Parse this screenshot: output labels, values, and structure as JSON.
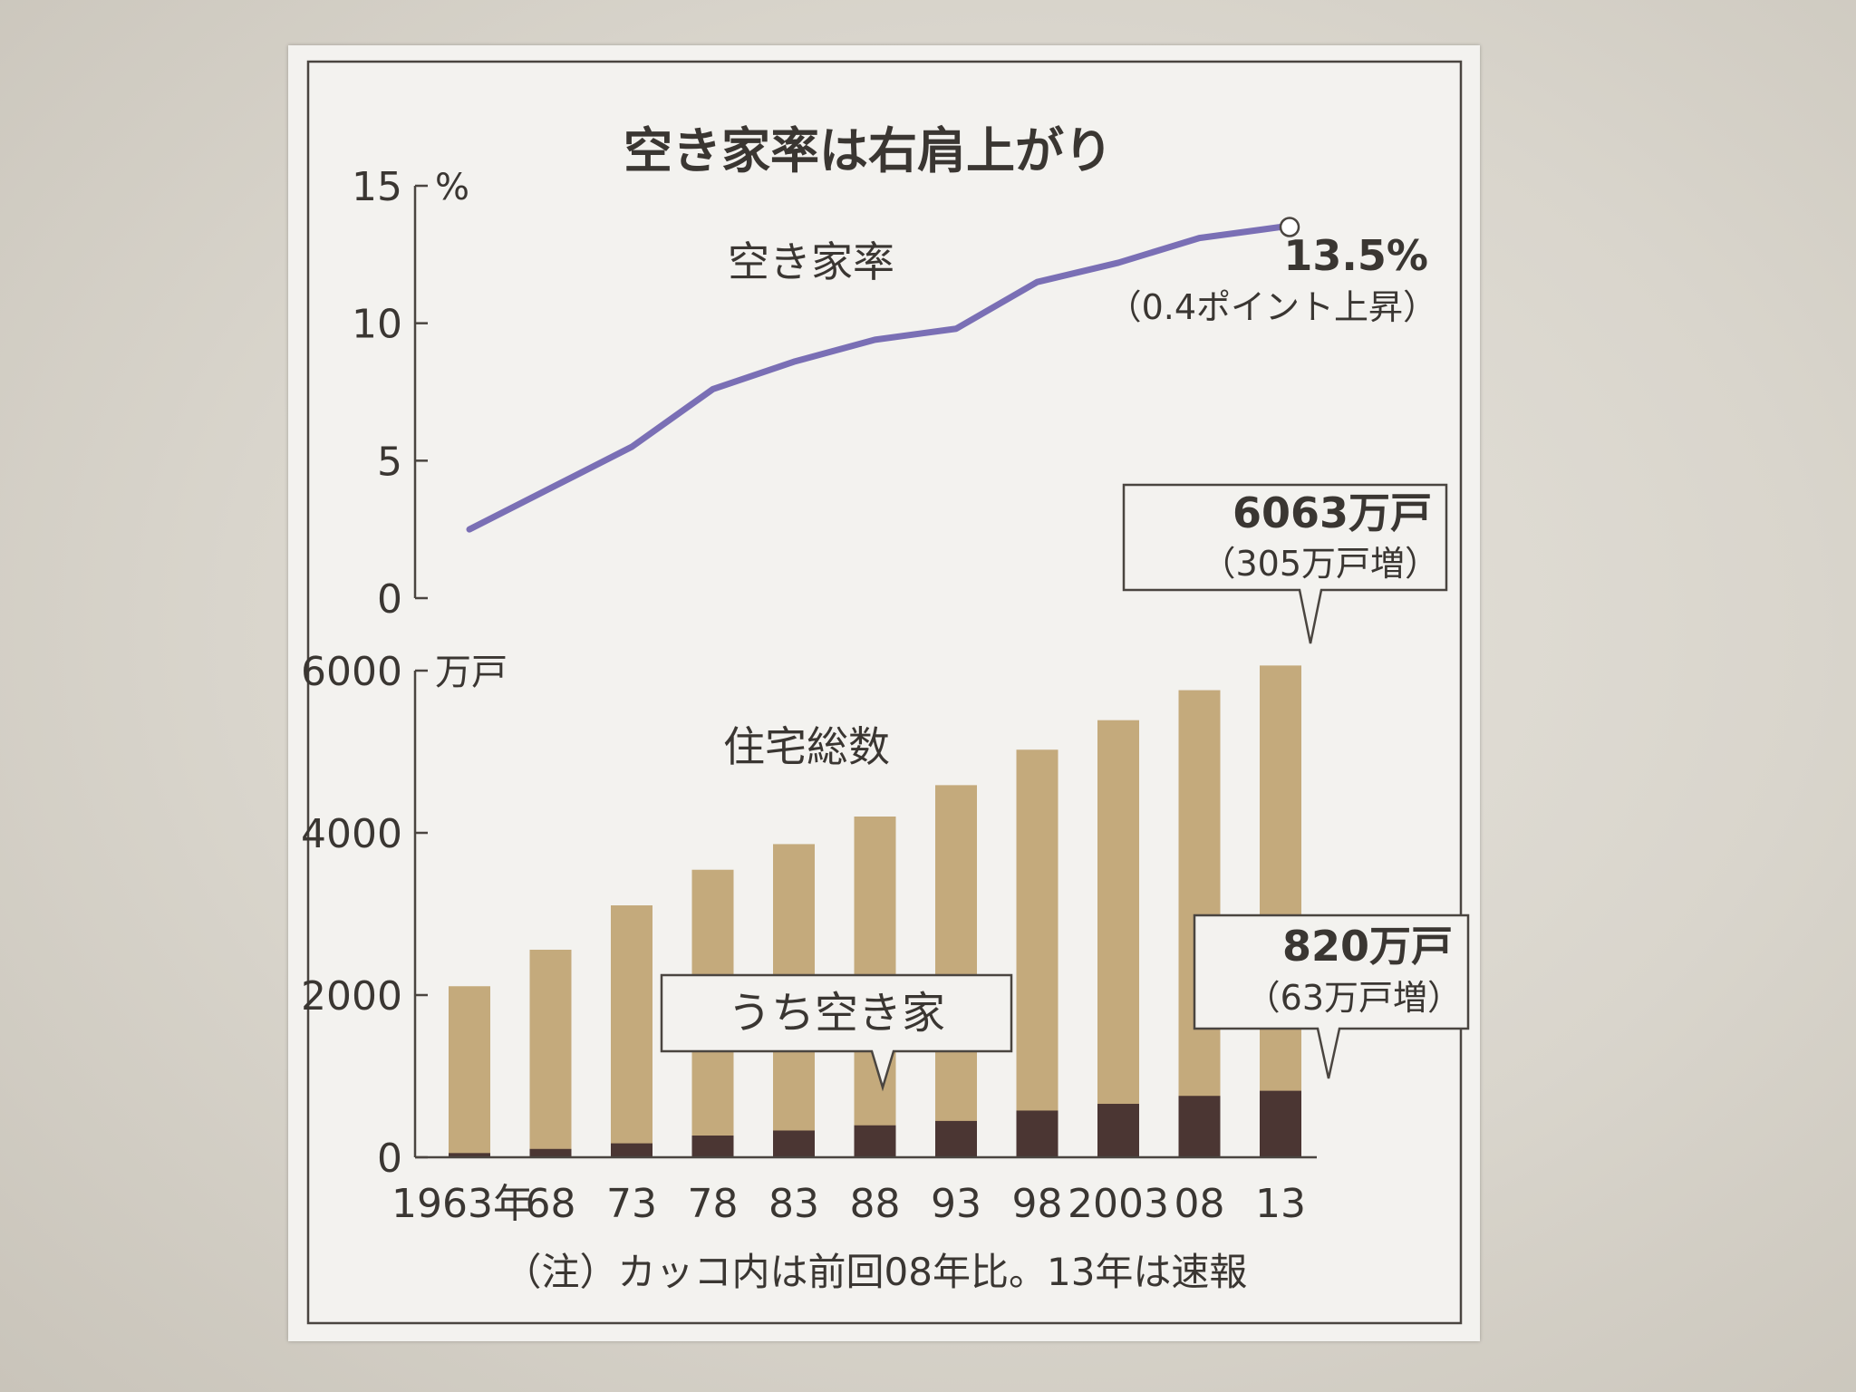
{
  "title": "空き家率は右肩上がり",
  "note": "（注）カッコ内は前回08年比。13年は速報",
  "colors": {
    "line": "#7a6fb5",
    "bar_total": "#c4aa7c",
    "bar_vacant": "#4b3633",
    "frame": "#4a4540",
    "text": "#3a3632"
  },
  "chart_data": [
    {
      "type": "line",
      "series_label": "空き家率",
      "y_unit": "%",
      "ylim": [
        0,
        15
      ],
      "y_ticks": [
        "0",
        "5",
        "10",
        "15"
      ],
      "x": [
        "1963",
        "1968",
        "1973",
        "1978",
        "1983",
        "1988",
        "1993",
        "1998",
        "2003",
        "2008",
        "2013"
      ],
      "values": [
        2.5,
        4.0,
        5.5,
        7.6,
        8.6,
        9.4,
        9.8,
        11.5,
        12.2,
        13.1,
        13.5
      ],
      "annotation": {
        "value": "13.5%",
        "note": "（0.4ポイント上昇）"
      }
    },
    {
      "type": "bar",
      "y_unit": "万戸",
      "ylim": [
        0,
        6000
      ],
      "y_ticks": [
        "0",
        "2000",
        "4000",
        "6000"
      ],
      "categories": [
        "1963年",
        "68",
        "73",
        "78",
        "83",
        "88",
        "93",
        "98",
        "2003",
        "08",
        "13"
      ],
      "series": [
        {
          "name": "住宅総数",
          "values": [
            2109,
            2559,
            3106,
            3545,
            3861,
            4201,
            4588,
            5025,
            5389,
            5759,
            6063
          ]
        },
        {
          "name": "うち空き家",
          "values": [
            52,
            103,
            172,
            268,
            330,
            394,
            448,
            576,
            659,
            757,
            820
          ]
        }
      ],
      "annotations": [
        {
          "value": "6063万戸",
          "note": "（305万戸増）"
        },
        {
          "value": "820万戸",
          "note": "（63万戸増）"
        }
      ]
    }
  ]
}
